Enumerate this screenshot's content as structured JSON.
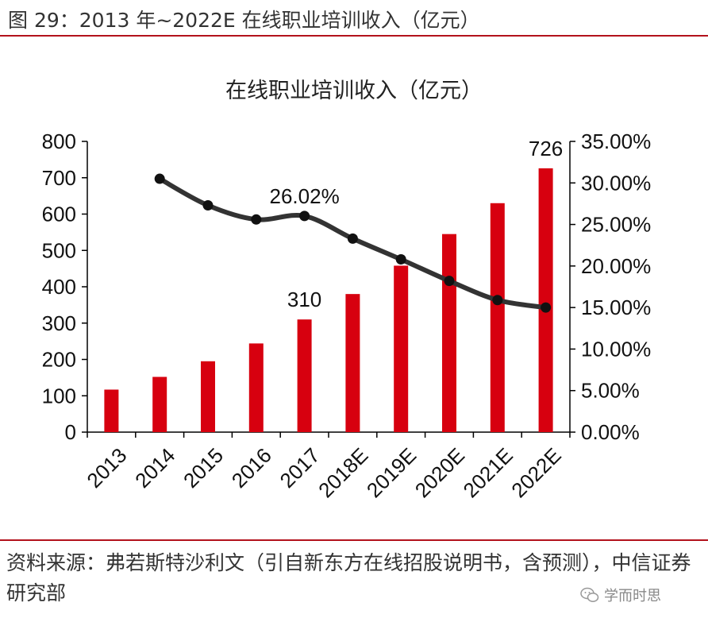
{
  "figure_title": "图 29：2013 年~2022E 在线职业培训收入（亿元）",
  "source_note": "资料来源：弗若斯特沙利文（引自新东方在线招股说明书，含预测），中信证券研究部",
  "watermark": "学而时思",
  "chart_data": {
    "type": "bar",
    "title": "在线职业培训收入（亿元）",
    "categories": [
      "2013",
      "2014",
      "2015",
      "2016",
      "2017",
      "2018E",
      "2019E",
      "2020E",
      "2021E",
      "2022E"
    ],
    "series": [
      {
        "name": "",
        "type": "bar",
        "axis": "left",
        "color": "#d7000f",
        "values": [
          117,
          152,
          195,
          244,
          310,
          380,
          458,
          545,
          630,
          726
        ]
      },
      {
        "name": "",
        "type": "line",
        "axis": "right",
        "color": "#333333",
        "values": [
          null,
          30.5,
          27.3,
          25.6,
          26.02,
          23.3,
          20.8,
          18.2,
          15.9,
          15.0
        ]
      }
    ],
    "y_left": {
      "min": 0,
      "max": 800,
      "ticks": [
        "0",
        "100",
        "200",
        "300",
        "400",
        "500",
        "600",
        "700",
        "800"
      ]
    },
    "y_right": {
      "min": 0,
      "max": 35,
      "ticks": [
        "0.00%",
        "5.00%",
        "10.00%",
        "15.00%",
        "20.00%",
        "25.00%",
        "30.00%",
        "35.00%"
      ]
    },
    "annotations": [
      {
        "series": 0,
        "index": 4,
        "text": "310"
      },
      {
        "series": 0,
        "index": 9,
        "text": "726"
      },
      {
        "series": 1,
        "index": 4,
        "text": "26.02%"
      }
    ],
    "grid": false,
    "legend": "none"
  }
}
